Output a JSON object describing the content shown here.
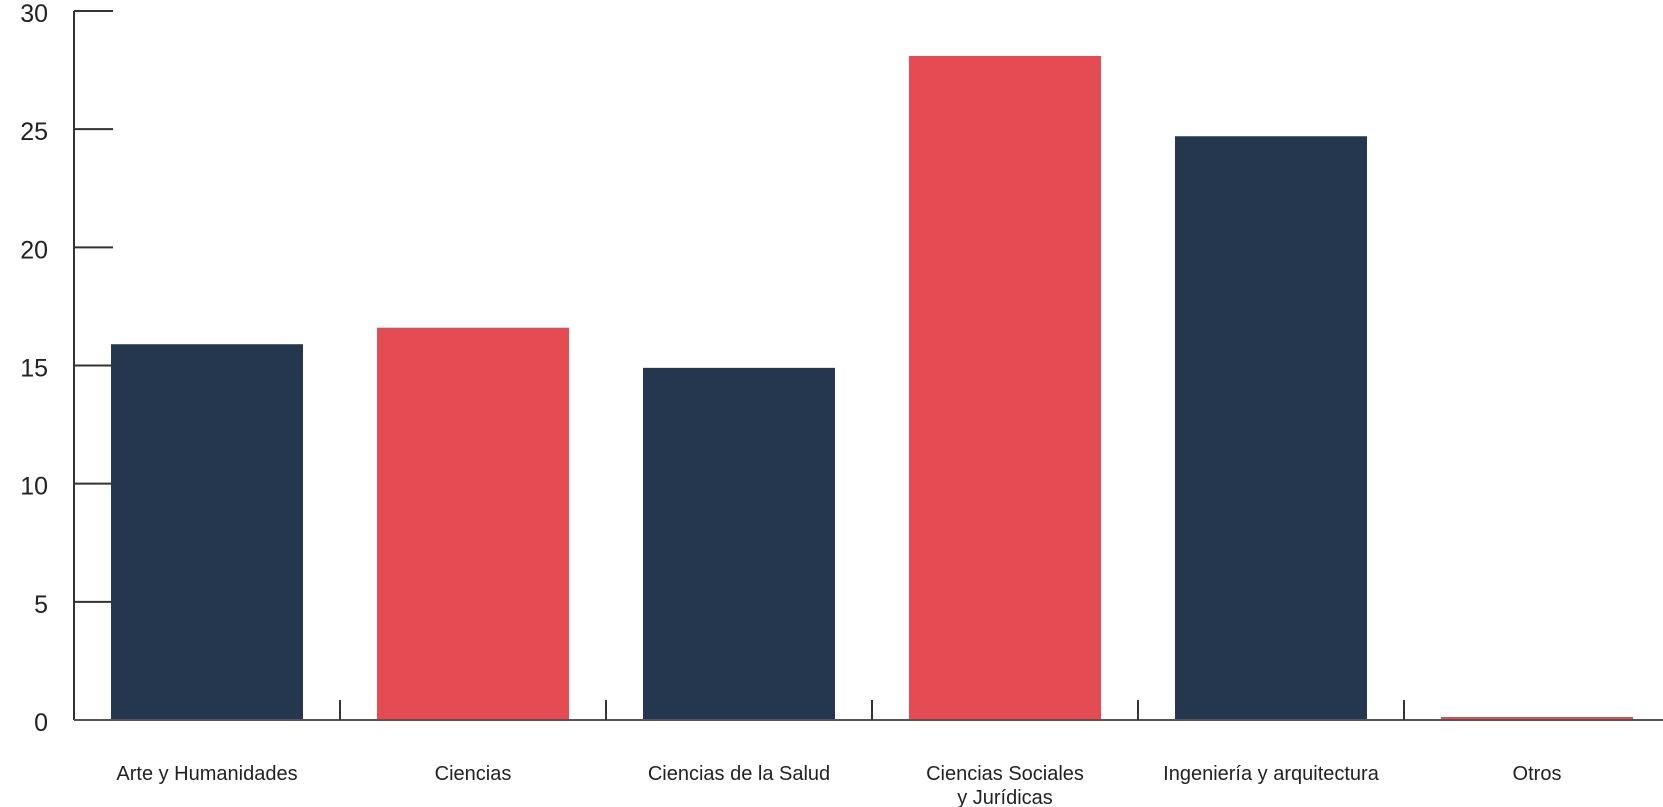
{
  "chart_data": {
    "type": "bar",
    "categories": [
      "Arte y Humanidades",
      "Ciencias",
      "Ciencias de la Salud",
      "Ciencias Sociales y Jurídicas",
      "Ingeniería y arquitectura",
      "Otros"
    ],
    "category_label_lines": [
      [
        "Arte y Humanidades"
      ],
      [
        "Ciencias"
      ],
      [
        "Ciencias de la Salud"
      ],
      [
        "Ciencias Sociales",
        "y Jurídicas"
      ],
      [
        "Ingeniería y arquitectura"
      ],
      [
        "Otros"
      ]
    ],
    "values": [
      15.9,
      16.6,
      14.9,
      28.1,
      24.7,
      0
    ],
    "bar_colors": [
      "#24374f",
      "#e54b53",
      "#24374f",
      "#e54b53",
      "#24374f",
      "#e54b53"
    ],
    "ylim": [
      0,
      30
    ],
    "yticks": [
      "0",
      "5",
      "10",
      "15",
      "20",
      "25",
      "30"
    ],
    "title": "",
    "xlabel": "",
    "ylabel": "",
    "grid": false,
    "legend": "none"
  }
}
